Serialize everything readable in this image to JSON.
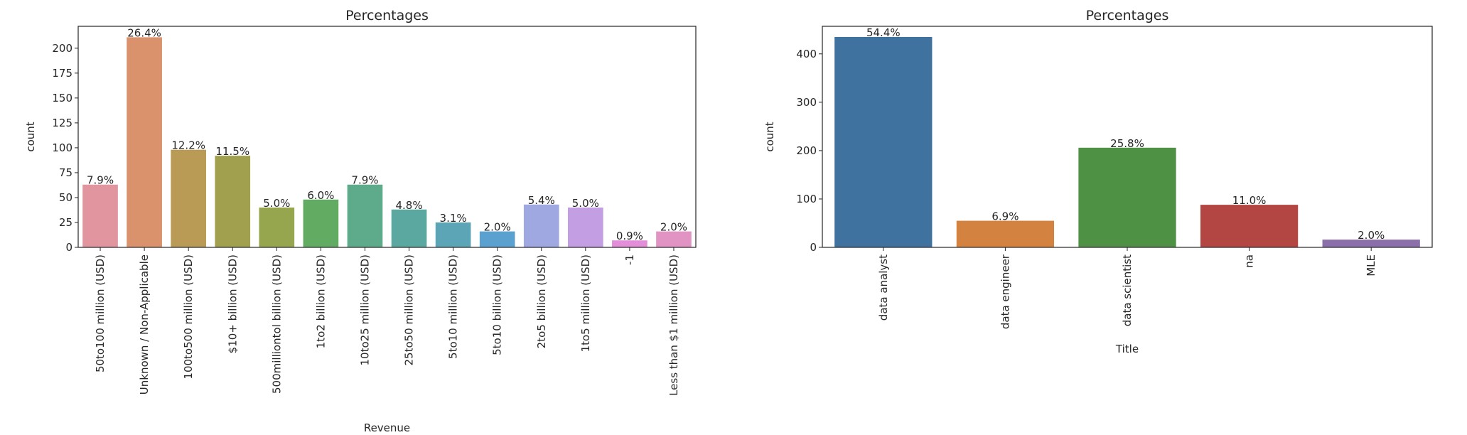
{
  "chart_data": [
    {
      "type": "bar",
      "title": "Percentages",
      "xlabel": "Revenue",
      "ylabel": "count",
      "ylim": [
        0,
        222
      ],
      "yticks": [
        0,
        25,
        50,
        75,
        100,
        125,
        150,
        175,
        200
      ],
      "grid": false,
      "categories": [
        "50to100 million (USD)",
        "Unknown / Non-Applicable",
        "100to500 million (USD)",
        "$10+ billion (USD)",
        "500milliontol billion (USD)",
        "1to2 billion (USD)",
        "10to25 million (USD)",
        "25to50 million (USD)",
        "5to10 million (USD)",
        "5to10 billion (USD)",
        "2to5 billion (USD)",
        "1to5 million (USD)",
        "-1",
        "Less than $1 million (USD)"
      ],
      "values": [
        63,
        211,
        98,
        92,
        40,
        48,
        63,
        38,
        25,
        16,
        43,
        40,
        7,
        16
      ],
      "labels": [
        "7.9%",
        "26.4%",
        "12.2%",
        "11.5%",
        "5.0%",
        "6.0%",
        "7.9%",
        "4.8%",
        "3.1%",
        "2.0%",
        "5.4%",
        "5.0%",
        "0.9%",
        "2.0%"
      ],
      "colors": [
        "#e1959f",
        "#d9926b",
        "#b99b55",
        "#a1a04f",
        "#96a64f",
        "#61ab62",
        "#5dab8b",
        "#5ba8a0",
        "#5ba5b6",
        "#5ba1d0",
        "#9fa8e1",
        "#c49ee3",
        "#e28ed8",
        "#e193c3"
      ]
    },
    {
      "type": "bar",
      "title": "Percentages",
      "xlabel": "Title",
      "ylabel": "count",
      "ylim": [
        0,
        457
      ],
      "yticks": [
        0,
        100,
        200,
        300,
        400
      ],
      "grid": false,
      "categories": [
        "data analyst",
        "data engineer",
        "data scientist",
        "na",
        "MLE"
      ],
      "values": [
        435,
        55,
        206,
        88,
        16
      ],
      "labels": [
        "54.4%",
        "6.9%",
        "25.8%",
        "11.0%",
        "2.0%"
      ],
      "colors": [
        "#3f729e",
        "#d4823f",
        "#4f9144",
        "#b34542",
        "#8b6faa"
      ]
    }
  ]
}
